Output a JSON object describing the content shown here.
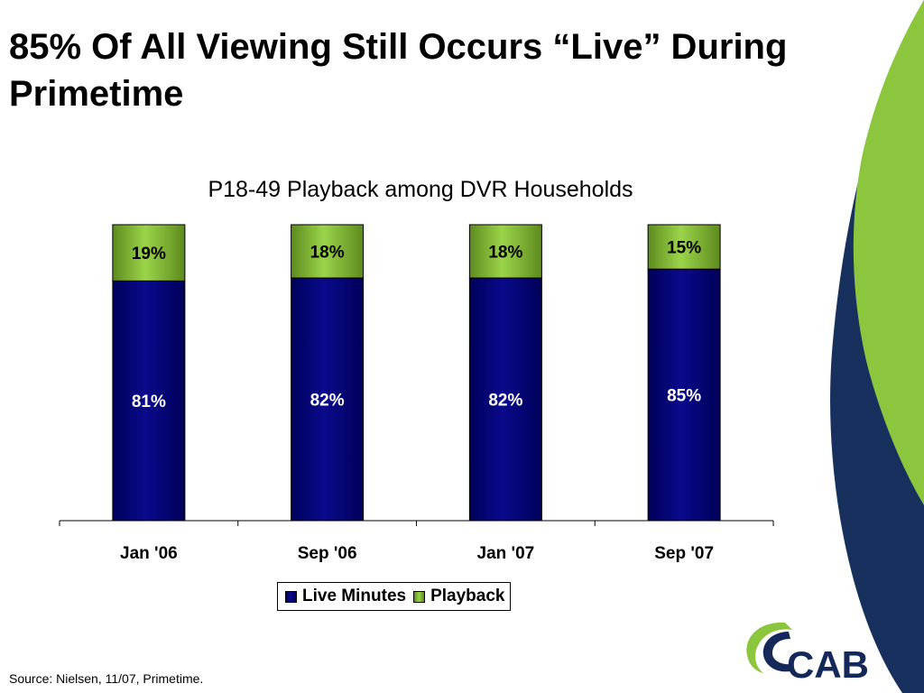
{
  "slide": {
    "title": "85% Of All Viewing Still Occurs “Live” During Primetime",
    "source_note": "Source: Nielsen,  11/07, Primetime."
  },
  "logo": {
    "text": "CAB",
    "colors": {
      "navy": "#14285a",
      "green": "#8cc63f"
    }
  },
  "colors": {
    "decor_navy": "#17305e",
    "decor_green": "#8cc63f",
    "live": "#000080",
    "playback": "#8cc63f"
  },
  "chart_data": {
    "type": "bar",
    "stacked": true,
    "title": "P18-49 Playback among DVR Households",
    "xlabel": "",
    "ylabel": "",
    "ylim": [
      0,
      100
    ],
    "categories": [
      "Jan '06",
      "Sep '06",
      "Jan '07",
      "Sep '07"
    ],
    "series": [
      {
        "name": "Live Minutes",
        "values": [
          81,
          82,
          82,
          85
        ],
        "labels": [
          "81%",
          "82%",
          "82%",
          "85%"
        ],
        "color": "#000080",
        "label_color": "#ffffff"
      },
      {
        "name": "Playback",
        "values": [
          19,
          18,
          18,
          15
        ],
        "labels": [
          "19%",
          "18%",
          "18%",
          "15%"
        ],
        "color": "#8cc63f",
        "label_color": "#000000"
      }
    ],
    "grid": false,
    "legend_position": "bottom"
  }
}
